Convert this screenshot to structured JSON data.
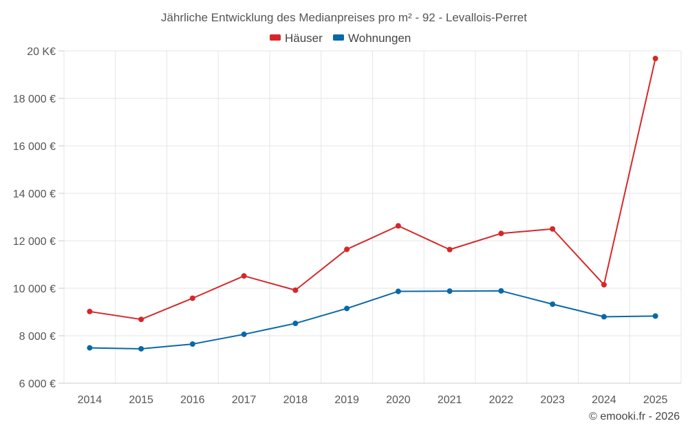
{
  "chart_data": {
    "type": "line",
    "title": "Jährliche Entwicklung des Medianpreises pro m² - 92 - Levallois-Perret",
    "categories": [
      "2014",
      "2015",
      "2016",
      "2017",
      "2018",
      "2019",
      "2020",
      "2021",
      "2022",
      "2023",
      "2024",
      "2025"
    ],
    "series": [
      {
        "name": "Häuser",
        "color": "#d62728",
        "values": [
          9020,
          8690,
          9580,
          10520,
          9920,
          11640,
          12630,
          11630,
          12310,
          12500,
          10150,
          19680
        ]
      },
      {
        "name": "Wohnungen",
        "color": "#0868a8",
        "values": [
          7490,
          7450,
          7650,
          8060,
          8520,
          9150,
          9870,
          9880,
          9890,
          9330,
          8800,
          8830
        ]
      }
    ],
    "ylim": [
      6000,
      20000
    ],
    "yticks": [
      6000,
      8000,
      10000,
      12000,
      14000,
      16000,
      18000,
      20000
    ],
    "ytick_labels": [
      "6 000 €",
      "8 000 €",
      "10 000 €",
      "12 000 €",
      "14 000 €",
      "16 000 €",
      "18 000 €",
      "20 K€"
    ],
    "legend_position": "top-center",
    "grid": true
  },
  "credit": "© emooki.fr - 2026"
}
